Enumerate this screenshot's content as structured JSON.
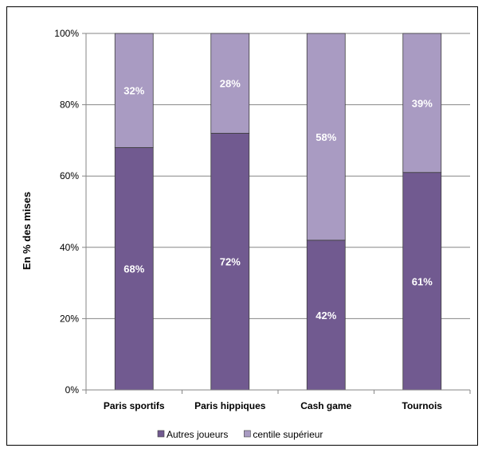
{
  "chart_data": {
    "type": "bar",
    "stacked": true,
    "categories": [
      "Paris sportifs",
      "Paris hippiques",
      "Cash game",
      "Tournois"
    ],
    "series": [
      {
        "name": "Autres joueurs",
        "values": [
          68,
          72,
          42,
          61
        ],
        "labels": [
          "68%",
          "72%",
          "42%",
          "61%"
        ],
        "color": "#715a90"
      },
      {
        "name": "centile supérieur",
        "values": [
          32,
          28,
          58,
          39
        ],
        "labels": [
          "32%",
          "28%",
          "58%",
          "39%"
        ],
        "color": "#a99bc2"
      }
    ],
    "title": "",
    "xlabel": "",
    "ylabel": "En % des mises",
    "ylim": [
      0,
      100
    ],
    "yticks": [
      "0%",
      "20%",
      "40%",
      "60%",
      "80%",
      "100%"
    ],
    "grid": true,
    "legend_position": "bottom"
  }
}
